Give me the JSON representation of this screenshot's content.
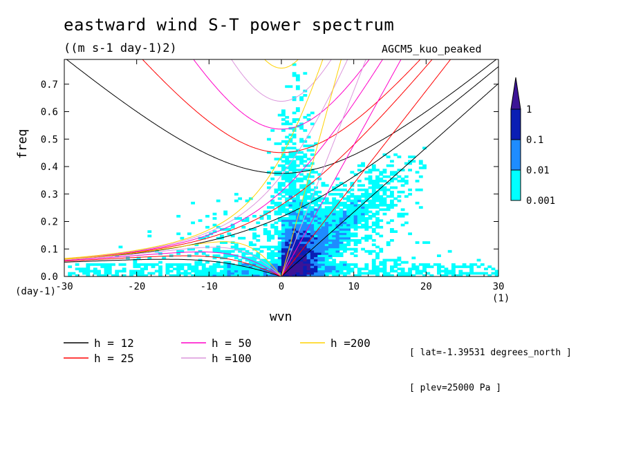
{
  "chart_data": {
    "type": "heatmap",
    "title": "eastward wind S-T power spectrum",
    "subtitle": "((m s-1 day-1)2)",
    "model_label": "AGCM5_kuo_peaked",
    "xlabel": "wvn",
    "ylabel": "freq",
    "x_unit": "(1)",
    "y_unit": "(day-1)",
    "xlim": [
      -30,
      30
    ],
    "ylim": [
      0,
      0.79
    ],
    "x_ticks": [
      -30,
      -20,
      -10,
      0,
      10,
      20,
      30
    ],
    "x_tick_labels": [
      "-30",
      "-20",
      "-10",
      "0",
      "10",
      "20",
      "30"
    ],
    "y_ticks": [
      0.0,
      0.1,
      0.2,
      0.3,
      0.4,
      0.5,
      0.6,
      0.7
    ],
    "y_tick_labels": [
      "0.0",
      "0.1",
      "0.2",
      "0.3",
      "0.4",
      "0.5",
      "0.6",
      "0.7"
    ],
    "colorbar": {
      "levels": [
        0.001,
        0.01,
        0.1,
        1
      ],
      "labels": [
        "0.001",
        "0.01",
        "0.1",
        "1"
      ],
      "colors": [
        "#00FFFF",
        "#1E8CFF",
        "#0A1EB4",
        "#3C1496"
      ]
    },
    "dispersion_curves": [
      {
        "label": "h = 12",
        "h": 12,
        "color": "#000000"
      },
      {
        "label": "h = 25",
        "h": 25,
        "color": "#FF0000"
      },
      {
        "label": "h = 50",
        "h": 50,
        "color": "#FF00C8"
      },
      {
        "label": "h =100",
        "h": 100,
        "color": "#DC96DC"
      },
      {
        "label": "h =200",
        "h": 200,
        "color": "#FFD200"
      }
    ],
    "annotations": [
      "[ lat=-1.39531 degrees_north ]",
      "[ plev=25000 Pa ]"
    ]
  }
}
